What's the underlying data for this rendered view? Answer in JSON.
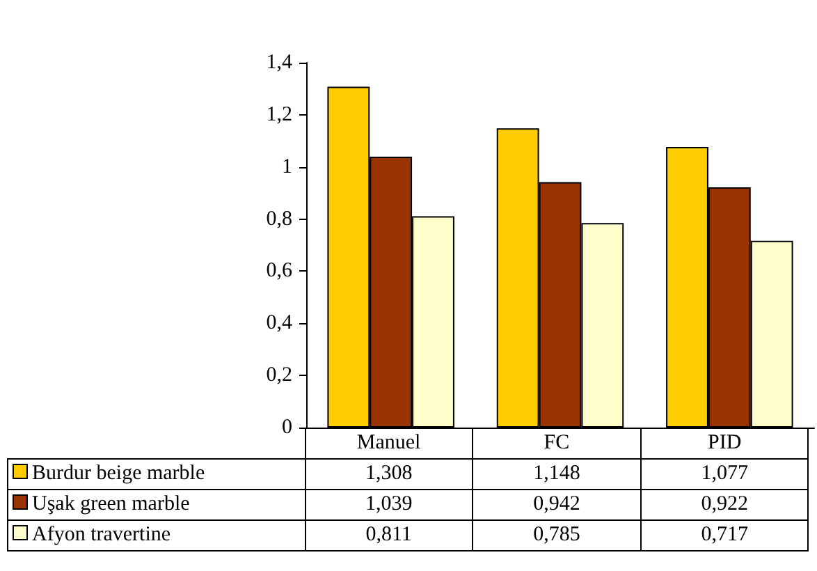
{
  "chart_data": {
    "type": "bar",
    "categories": [
      "Manuel",
      "FC",
      "PID"
    ],
    "series": [
      {
        "name": "Burdur beige marble",
        "color": "#ffcc00",
        "values": [
          1.308,
          1.148,
          1.077
        ],
        "value_labels": [
          "1,308",
          "1,148",
          "1,077"
        ]
      },
      {
        "name": "Uşak green marble",
        "color": "#993300",
        "values": [
          1.039,
          0.942,
          0.922
        ],
        "value_labels": [
          "1,039",
          "0,942",
          "0,922"
        ]
      },
      {
        "name": "Afyon travertine",
        "color": "#ffffcc",
        "values": [
          0.811,
          0.785,
          0.717
        ],
        "value_labels": [
          "0,811",
          "0,785",
          "0,717"
        ]
      }
    ],
    "ylim": [
      0,
      1.4
    ],
    "yticks": [
      {
        "value": 0,
        "label": "0"
      },
      {
        "value": 0.2,
        "label": "0,2"
      },
      {
        "value": 0.4,
        "label": "0,4"
      },
      {
        "value": 0.6,
        "label": "0,6"
      },
      {
        "value": 0.8,
        "label": "0,8"
      },
      {
        "value": 1,
        "label": "1"
      },
      {
        "value": 1.2,
        "label": "1,2"
      },
      {
        "value": 1.4,
        "label": "1,4"
      }
    ],
    "grid": false,
    "legend": "bottom left"
  }
}
